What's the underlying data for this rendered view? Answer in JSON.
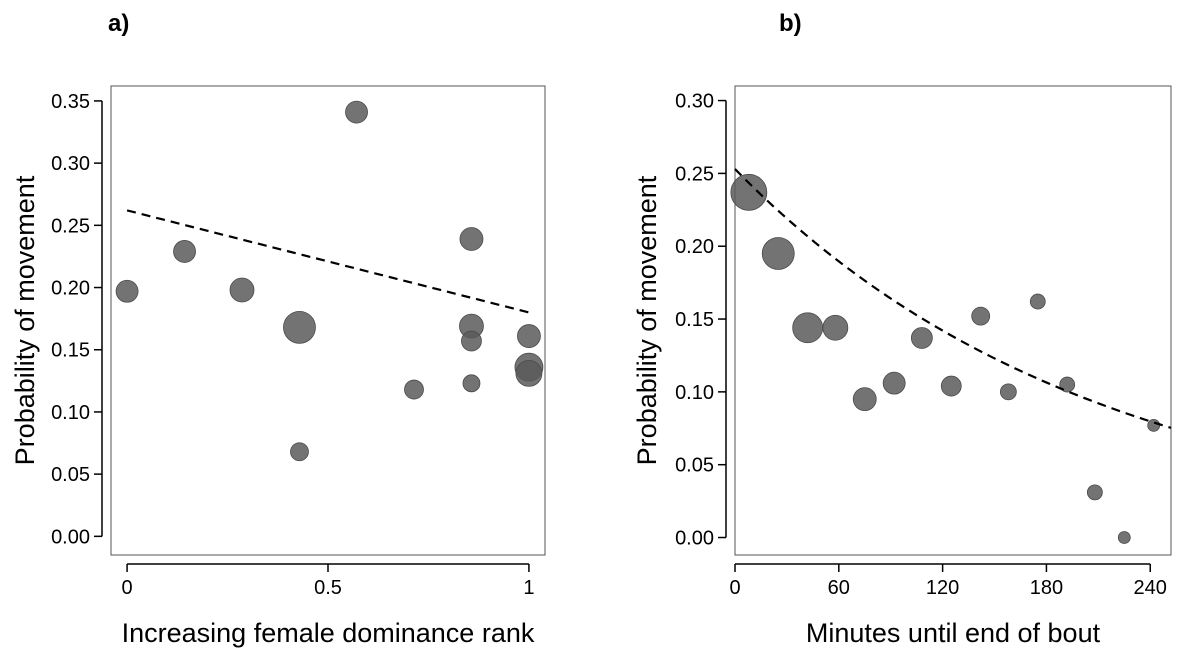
{
  "chart_data": [
    {
      "type": "scatter",
      "panel_label": "a)",
      "xlabel": "Increasing female dominance rank",
      "ylabel": "Probability of movement",
      "xlim": [
        -0.04,
        1.04
      ],
      "ylim": [
        -0.015,
        0.362
      ],
      "xticks": [
        0,
        0.5,
        1
      ],
      "xtick_labels": [
        "0",
        "0.5",
        "1"
      ],
      "yticks": [
        0,
        0.05,
        0.1,
        0.15,
        0.2,
        0.25,
        0.3,
        0.35
      ],
      "ytick_labels": [
        "0.00",
        "0.05",
        "0.10",
        "0.15",
        "0.20",
        "0.25",
        "0.30",
        "0.35"
      ],
      "grid": false,
      "marker_color": "#5a5a5a",
      "points": [
        {
          "x": 0.0,
          "y": 0.197,
          "size": 11
        },
        {
          "x": 0.143,
          "y": 0.229,
          "size": 11
        },
        {
          "x": 0.286,
          "y": 0.198,
          "size": 12
        },
        {
          "x": 0.429,
          "y": 0.168,
          "size": 16
        },
        {
          "x": 0.429,
          "y": 0.068,
          "size": 9
        },
        {
          "x": 0.571,
          "y": 0.341,
          "size": 11
        },
        {
          "x": 0.714,
          "y": 0.118,
          "size": 9.5
        },
        {
          "x": 0.857,
          "y": 0.239,
          "size": 11.5
        },
        {
          "x": 0.857,
          "y": 0.169,
          "size": 12
        },
        {
          "x": 0.857,
          "y": 0.157,
          "size": 10
        },
        {
          "x": 0.857,
          "y": 0.123,
          "size": 8.5
        },
        {
          "x": 1.0,
          "y": 0.161,
          "size": 11.5
        },
        {
          "x": 1.0,
          "y": 0.136,
          "size": 14
        },
        {
          "x": 1.0,
          "y": 0.131,
          "size": 13
        }
      ],
      "fit_line": {
        "style": "dashed",
        "x": [
          0,
          1
        ],
        "y": [
          0.262,
          0.18
        ]
      }
    },
    {
      "type": "scatter",
      "panel_label": "b)",
      "xlabel": "Minutes until end of bout",
      "ylabel": "Probability of movement",
      "xlim": [
        0,
        252
      ],
      "ylim": [
        -0.012,
        0.31
      ],
      "xticks": [
        0,
        60,
        120,
        180,
        240
      ],
      "xtick_labels": [
        "0",
        "60",
        "120",
        "180",
        "240"
      ],
      "yticks": [
        0,
        0.05,
        0.1,
        0.15,
        0.2,
        0.25,
        0.3
      ],
      "ytick_labels": [
        "0.00",
        "0.05",
        "0.10",
        "0.15",
        "0.20",
        "0.25",
        "0.30"
      ],
      "grid": false,
      "marker_color": "#5a5a5a",
      "points": [
        {
          "x": 8,
          "y": 0.237,
          "size": 18
        },
        {
          "x": 25,
          "y": 0.195,
          "size": 16
        },
        {
          "x": 42,
          "y": 0.144,
          "size": 15
        },
        {
          "x": 58,
          "y": 0.144,
          "size": 12.5
        },
        {
          "x": 75,
          "y": 0.095,
          "size": 11.5
        },
        {
          "x": 92,
          "y": 0.106,
          "size": 11
        },
        {
          "x": 108,
          "y": 0.137,
          "size": 10.5
        },
        {
          "x": 125,
          "y": 0.104,
          "size": 10
        },
        {
          "x": 142,
          "y": 0.152,
          "size": 9
        },
        {
          "x": 158,
          "y": 0.1,
          "size": 8
        },
        {
          "x": 175,
          "y": 0.162,
          "size": 7.5
        },
        {
          "x": 192,
          "y": 0.105,
          "size": 7.5
        },
        {
          "x": 208,
          "y": 0.031,
          "size": 7.5
        },
        {
          "x": 225,
          "y": 0.0,
          "size": 6
        },
        {
          "x": 242,
          "y": 0.077,
          "size": 6
        }
      ],
      "fit_line": {
        "style": "dashed",
        "form": "exponential",
        "y0": 0.253,
        "k": 0.00481
      }
    }
  ]
}
